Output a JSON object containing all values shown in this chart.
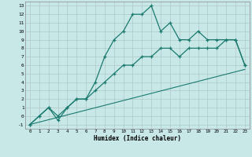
{
  "title": "",
  "xlabel": "Humidex (Indice chaleur)",
  "bg_color": "#c8e8e8",
  "grid_color": "#b0c8c8",
  "line_color": "#1a7a6e",
  "xlim": [
    -0.5,
    23.5
  ],
  "ylim": [
    -1.5,
    13.5
  ],
  "xticks": [
    0,
    1,
    2,
    3,
    4,
    5,
    6,
    7,
    8,
    9,
    10,
    11,
    12,
    13,
    14,
    15,
    16,
    17,
    18,
    19,
    20,
    21,
    22,
    23
  ],
  "yticks": [
    -1,
    0,
    1,
    2,
    3,
    4,
    5,
    6,
    7,
    8,
    9,
    10,
    11,
    12,
    13
  ],
  "curve1_x": [
    0,
    1,
    2,
    3,
    4,
    5,
    6,
    7,
    8,
    9,
    10,
    11,
    12,
    13,
    14,
    15,
    16,
    17,
    18,
    19,
    20,
    21,
    22,
    23
  ],
  "curve1_y": [
    -1,
    0,
    1,
    -0.5,
    1,
    2,
    2,
    4,
    7,
    9,
    10,
    12,
    12,
    13,
    10,
    11,
    9,
    9,
    10,
    9,
    9,
    9,
    9,
    6
  ],
  "curve2_x": [
    0,
    1,
    2,
    3,
    4,
    5,
    6,
    7,
    8,
    9,
    10,
    11,
    12,
    13,
    14,
    15,
    16,
    17,
    18,
    19,
    20,
    21,
    22,
    23
  ],
  "curve2_y": [
    -1,
    0,
    1,
    0,
    1,
    2,
    2,
    3,
    4,
    5,
    6,
    6,
    7,
    7,
    8,
    8,
    7,
    8,
    8,
    8,
    8,
    9,
    9,
    6
  ],
  "line_x": [
    0,
    23
  ],
  "line_y": [
    -1,
    5.5
  ]
}
